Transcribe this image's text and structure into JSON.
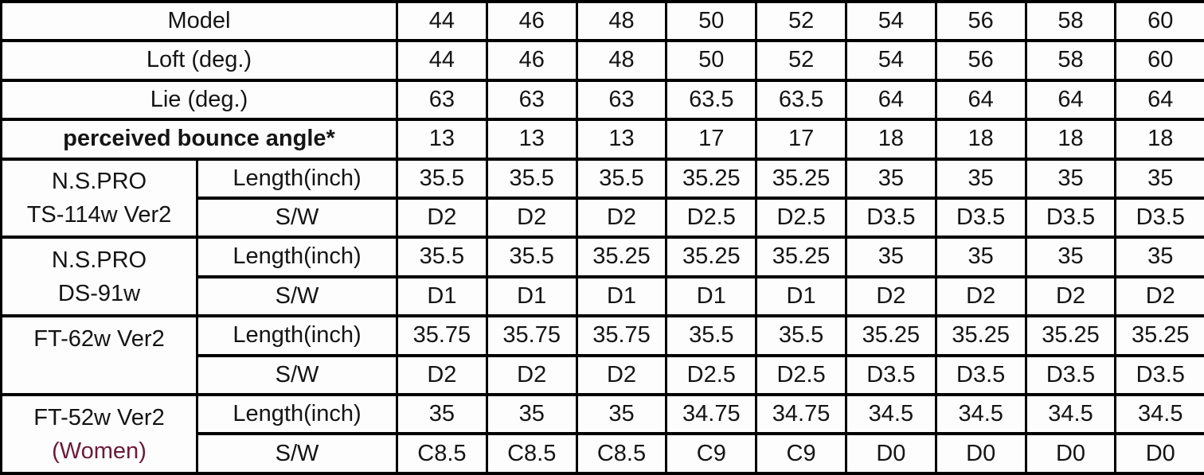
{
  "colors": {
    "background": "#fdfdfd",
    "border": "#000000",
    "text": "#141414",
    "women_text": "#6b1a3a"
  },
  "table": {
    "spec_rows": [
      {
        "label": "Model",
        "bold": false,
        "values": [
          "44",
          "46",
          "48",
          "50",
          "52",
          "54",
          "56",
          "58",
          "60"
        ]
      },
      {
        "label": "Loft (deg.)",
        "bold": false,
        "values": [
          "44",
          "46",
          "48",
          "50",
          "52",
          "54",
          "56",
          "58",
          "60"
        ]
      },
      {
        "label": "Lie (deg.)",
        "bold": false,
        "values": [
          "63",
          "63",
          "63",
          "63.5",
          "63.5",
          "64",
          "64",
          "64",
          "64"
        ]
      },
      {
        "label": "perceived bounce angle*",
        "bold": true,
        "values": [
          "13",
          "13",
          "13",
          "17",
          "17",
          "18",
          "18",
          "18",
          "18"
        ]
      }
    ],
    "shaft_groups": [
      {
        "name_lines": [
          "N.S.PRO",
          "TS-114w Ver2"
        ],
        "rows": [
          {
            "label": "Length(inch)",
            "values": [
              "35.5",
              "35.5",
              "35.5",
              "35.25",
              "35.25",
              "35",
              "35",
              "35",
              "35"
            ]
          },
          {
            "label": "S/W",
            "values": [
              "D2",
              "D2",
              "D2",
              "D2.5",
              "D2.5",
              "D3.5",
              "D3.5",
              "D3.5",
              "D3.5"
            ]
          }
        ]
      },
      {
        "name_lines": [
          "N.S.PRO",
          "DS-91w"
        ],
        "rows": [
          {
            "label": "Length(inch)",
            "values": [
              "35.5",
              "35.5",
              "35.25",
              "35.25",
              "35.25",
              "35",
              "35",
              "35",
              "35"
            ]
          },
          {
            "label": "S/W",
            "values": [
              "D1",
              "D1",
              "D1",
              "D1",
              "D1",
              "D2",
              "D2",
              "D2",
              "D2"
            ]
          }
        ]
      },
      {
        "name_lines": [
          "FT-62w Ver2"
        ],
        "align_top": true,
        "rows": [
          {
            "label": "Length(inch)",
            "values": [
              "35.75",
              "35.75",
              "35.75",
              "35.5",
              "35.5",
              "35.25",
              "35.25",
              "35.25",
              "35.25"
            ]
          },
          {
            "label": "S/W",
            "values": [
              "D2",
              "D2",
              "D2",
              "D2.5",
              "D2.5",
              "D3.5",
              "D3.5",
              "D3.5",
              "D3.5"
            ]
          }
        ]
      },
      {
        "name_lines": [
          "FT-52w Ver2",
          "(Women)"
        ],
        "women_line_index": 1,
        "rows": [
          {
            "label": "Length(inch)",
            "values": [
              "35",
              "35",
              "35",
              "34.75",
              "34.75",
              "34.5",
              "34.5",
              "34.5",
              "34.5"
            ]
          },
          {
            "label": "S/W",
            "values": [
              "C8.5",
              "C8.5",
              "C8.5",
              "C9",
              "C9",
              "D0",
              "D0",
              "D0",
              "D0"
            ]
          }
        ]
      }
    ]
  }
}
